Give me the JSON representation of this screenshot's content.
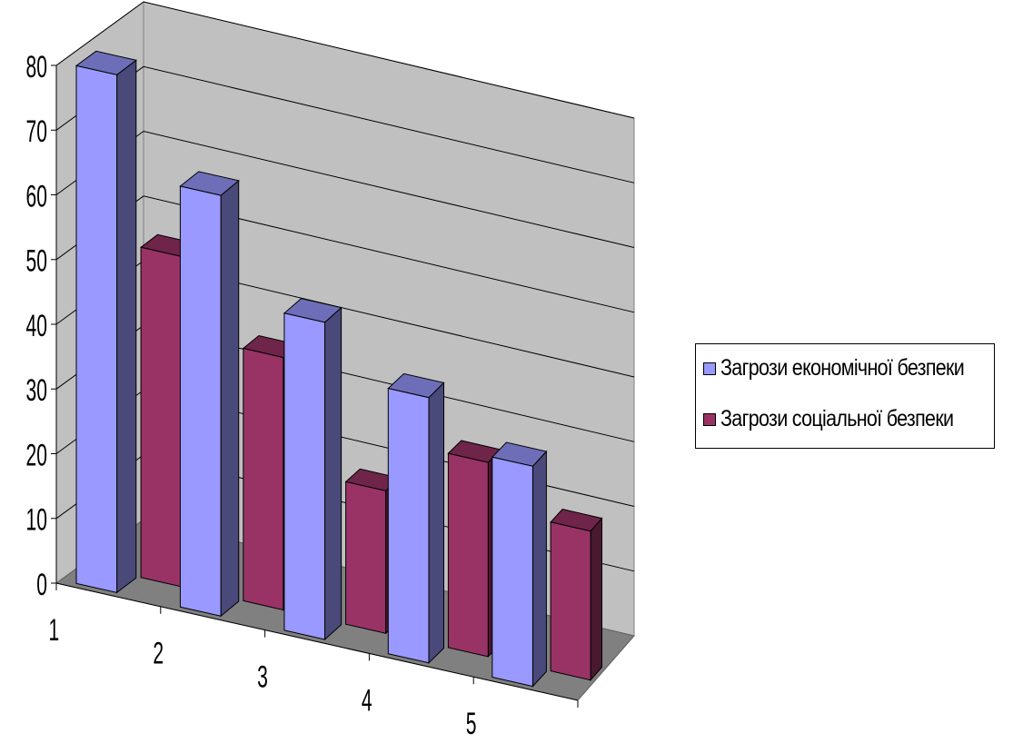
{
  "chart_data": {
    "type": "bar",
    "style": "3d-clustered-column",
    "categories": [
      "1",
      "2",
      "3",
      "4",
      "5"
    ],
    "series": [
      {
        "name": "Загрози економічної безпеки",
        "values": [
          80,
          65,
          49,
          41,
          34
        ],
        "color": "#9999ff"
      },
      {
        "name": "Загрози соціальної безпеки",
        "values": [
          51,
          39,
          22,
          30,
          23
        ],
        "color": "#993366"
      }
    ],
    "ylim": [
      0,
      80
    ],
    "yticks": [
      "0",
      "10",
      "20",
      "30",
      "40",
      "50",
      "60",
      "70",
      "80"
    ],
    "grid": true,
    "legend_position": "right",
    "colors": {
      "wall": "#c0c0c0",
      "floor": "#808080",
      "gridline": "#000000"
    }
  }
}
